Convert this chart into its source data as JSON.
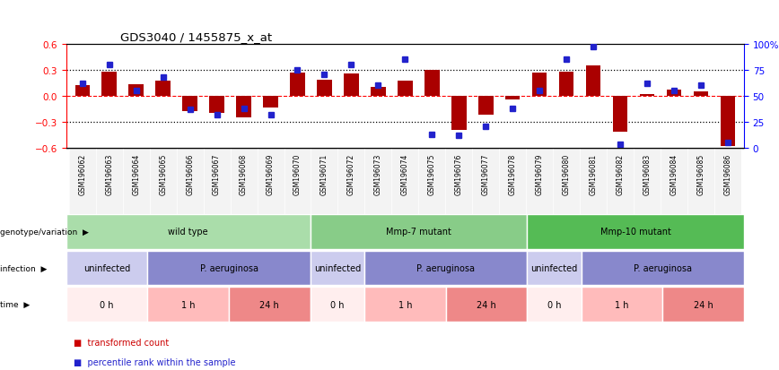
{
  "title": "GDS3040 / 1455875_x_at",
  "samples": [
    "GSM196062",
    "GSM196063",
    "GSM196064",
    "GSM196065",
    "GSM196066",
    "GSM196067",
    "GSM196068",
    "GSM196069",
    "GSM196070",
    "GSM196071",
    "GSM196072",
    "GSM196073",
    "GSM196074",
    "GSM196075",
    "GSM196076",
    "GSM196077",
    "GSM196078",
    "GSM196079",
    "GSM196080",
    "GSM196081",
    "GSM196082",
    "GSM196083",
    "GSM196084",
    "GSM196085",
    "GSM196086"
  ],
  "bar_values": [
    0.12,
    0.28,
    0.13,
    0.17,
    -0.18,
    -0.2,
    -0.25,
    -0.14,
    0.27,
    0.18,
    0.25,
    0.1,
    0.17,
    0.3,
    -0.4,
    -0.22,
    -0.05,
    0.27,
    0.28,
    0.35,
    -0.42,
    0.02,
    0.07,
    0.05,
    -0.58
  ],
  "blue_values": [
    62,
    80,
    55,
    68,
    37,
    32,
    38,
    32,
    75,
    70,
    80,
    60,
    85,
    13,
    12,
    20,
    38,
    55,
    85,
    97,
    3,
    62,
    55,
    60,
    5
  ],
  "bar_color": "#aa0000",
  "blue_color": "#2222cc",
  "ylim_left": [
    -0.6,
    0.6
  ],
  "ylim_right": [
    0,
    100
  ],
  "yticks_left": [
    -0.6,
    -0.3,
    0.0,
    0.3,
    0.6
  ],
  "yticks_right": [
    0,
    25,
    50,
    75,
    100
  ],
  "ytick_labels_right": [
    "0",
    "25",
    "50",
    "75",
    "100%"
  ],
  "annotation_rows": [
    {
      "label": "genotype/variation",
      "groups": [
        {
          "text": "wild type",
          "start": 0,
          "end": 9,
          "color": "#aaddaa"
        },
        {
          "text": "Mmp-7 mutant",
          "start": 9,
          "end": 17,
          "color": "#88cc88"
        },
        {
          "text": "Mmp-10 mutant",
          "start": 17,
          "end": 25,
          "color": "#55bb55"
        }
      ]
    },
    {
      "label": "infection",
      "groups": [
        {
          "text": "uninfected",
          "start": 0,
          "end": 3,
          "color": "#ccccee"
        },
        {
          "text": "P. aeruginosa",
          "start": 3,
          "end": 9,
          "color": "#8888cc"
        },
        {
          "text": "uninfected",
          "start": 9,
          "end": 11,
          "color": "#ccccee"
        },
        {
          "text": "P. aeruginosa",
          "start": 11,
          "end": 17,
          "color": "#8888cc"
        },
        {
          "text": "uninfected",
          "start": 17,
          "end": 19,
          "color": "#ccccee"
        },
        {
          "text": "P. aeruginosa",
          "start": 19,
          "end": 25,
          "color": "#8888cc"
        }
      ]
    },
    {
      "label": "time",
      "groups": [
        {
          "text": "0 h",
          "start": 0,
          "end": 3,
          "color": "#ffeeee"
        },
        {
          "text": "1 h",
          "start": 3,
          "end": 6,
          "color": "#ffbbbb"
        },
        {
          "text": "24 h",
          "start": 6,
          "end": 9,
          "color": "#ee8888"
        },
        {
          "text": "0 h",
          "start": 9,
          "end": 11,
          "color": "#ffeeee"
        },
        {
          "text": "1 h",
          "start": 11,
          "end": 14,
          "color": "#ffbbbb"
        },
        {
          "text": "24 h",
          "start": 14,
          "end": 17,
          "color": "#ee8888"
        },
        {
          "text": "0 h",
          "start": 17,
          "end": 19,
          "color": "#ffeeee"
        },
        {
          "text": "1 h",
          "start": 19,
          "end": 22,
          "color": "#ffbbbb"
        },
        {
          "text": "24 h",
          "start": 22,
          "end": 25,
          "color": "#ee8888"
        }
      ]
    }
  ],
  "legend_items": [
    {
      "label": "transformed count",
      "color": "#aa0000",
      "marker_color": "#cc0000"
    },
    {
      "label": "percentile rank within the sample",
      "color": "#2222cc",
      "marker_color": "#2222cc"
    }
  ],
  "fig_width": 8.68,
  "fig_height": 4.14,
  "dpi": 100
}
